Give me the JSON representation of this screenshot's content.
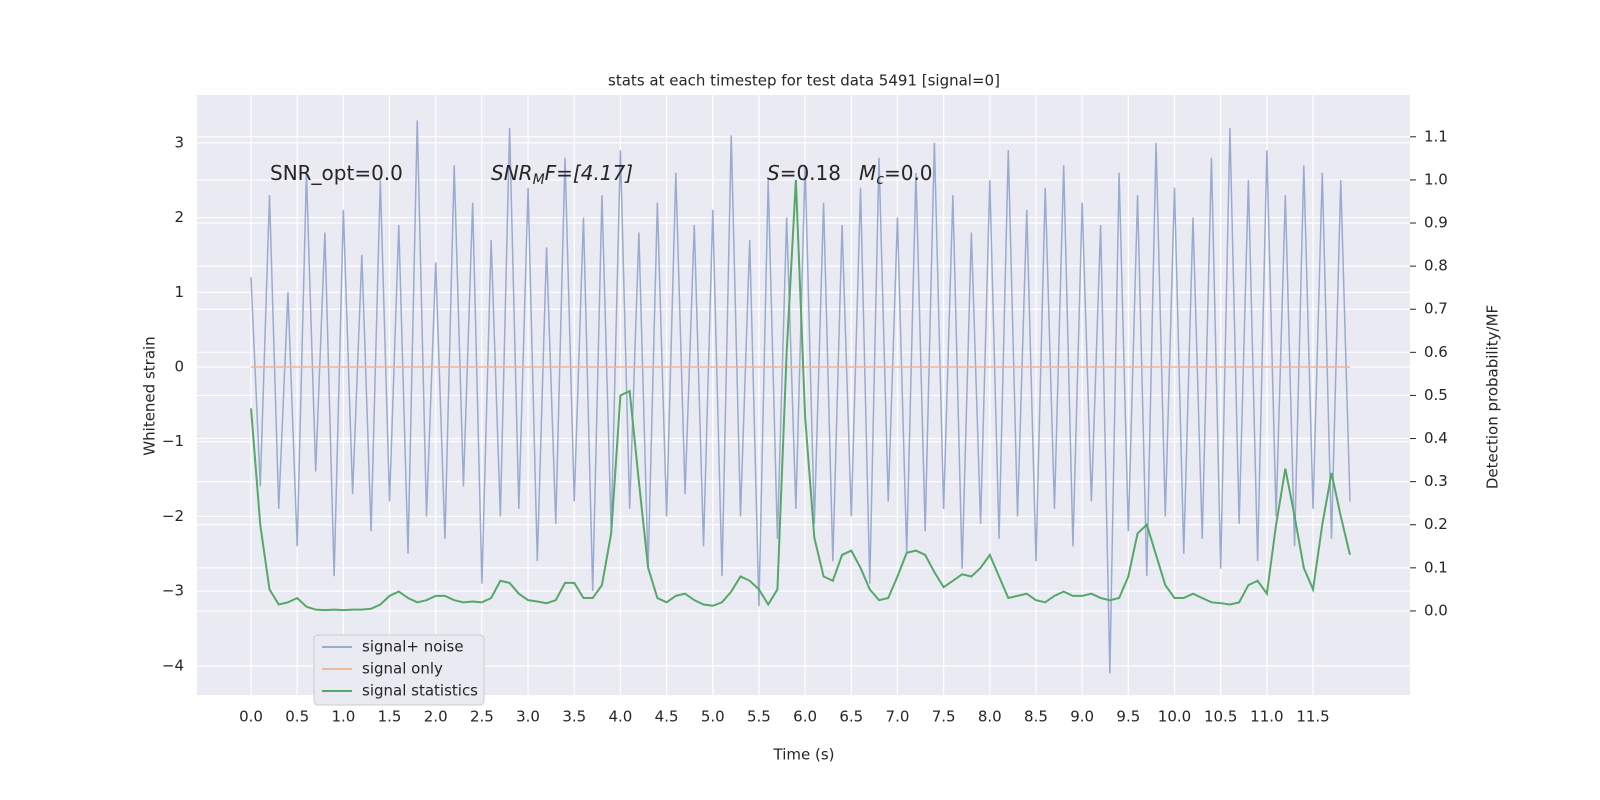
{
  "chart_data": {
    "type": "line",
    "title": "stats at each timestep for test data 5491 [signal=0]",
    "xlabel": "Time (s)",
    "ylabel": "Whitened strain",
    "y2label": "Detection probability/MF",
    "annotations": [
      [
        "SNR_opt=0.0"
      ],
      [
        "SNR",
        "M",
        "F=[4.17]"
      ],
      [
        "S",
        "=0.18",
        "M",
        "c",
        "=0.0"
      ]
    ],
    "x": [
      0.0,
      0.1,
      0.2,
      0.3,
      0.4,
      0.5,
      0.6,
      0.7,
      0.8,
      0.9,
      1.0,
      1.1,
      1.2,
      1.3,
      1.4,
      1.5,
      1.6,
      1.7,
      1.8,
      1.9,
      2.0,
      2.1,
      2.2,
      2.3,
      2.4,
      2.5,
      2.6,
      2.7,
      2.8,
      2.9,
      3.0,
      3.1,
      3.2,
      3.3,
      3.4,
      3.5,
      3.6,
      3.7,
      3.8,
      3.9,
      4.0,
      4.1,
      4.2,
      4.3,
      4.4,
      4.5,
      4.6,
      4.7,
      4.8,
      4.9,
      5.0,
      5.1,
      5.2,
      5.3,
      5.4,
      5.5,
      5.6,
      5.7,
      5.8,
      5.9,
      6.0,
      6.1,
      6.2,
      6.3,
      6.4,
      6.5,
      6.6,
      6.7,
      6.8,
      6.9,
      7.0,
      7.1,
      7.2,
      7.3,
      7.4,
      7.5,
      7.6,
      7.7,
      7.8,
      7.9,
      8.0,
      8.1,
      8.2,
      8.3,
      8.4,
      8.5,
      8.6,
      8.7,
      8.8,
      8.9,
      9.0,
      9.1,
      9.2,
      9.3,
      9.4,
      9.5,
      9.6,
      9.7,
      9.8,
      9.9,
      10.0,
      10.1,
      10.2,
      10.3,
      10.4,
      10.5,
      10.6,
      10.7,
      10.8,
      10.9,
      11.0,
      11.1,
      11.2,
      11.3,
      11.4,
      11.5,
      11.6,
      11.7,
      11.8,
      11.9
    ],
    "series": [
      {
        "name": "signal+ noise",
        "color": "#9aabd0",
        "values": [
          1.2,
          -1.6,
          2.3,
          -1.9,
          1.0,
          -2.4,
          2.6,
          -1.4,
          1.8,
          -2.8,
          2.1,
          -1.7,
          1.5,
          -2.2,
          2.5,
          -1.8,
          1.9,
          -2.5,
          3.3,
          -2.0,
          1.4,
          -2.3,
          2.7,
          -1.6,
          2.2,
          -2.9,
          1.7,
          -2.0,
          3.2,
          -1.9,
          2.4,
          -2.6,
          1.6,
          -2.1,
          2.8,
          -1.8,
          2.0,
          -3.0,
          2.3,
          -2.2,
          2.9,
          -1.9,
          1.8,
          -2.7,
          2.2,
          -2.0,
          2.6,
          -1.7,
          1.9,
          -2.4,
          2.1,
          -2.8,
          3.1,
          -2.0,
          1.7,
          -3.2,
          2.5,
          -2.3,
          2.0,
          -1.9,
          2.7,
          -2.1,
          2.2,
          -2.6,
          1.9,
          -2.0,
          2.4,
          -2.9,
          2.8,
          -1.8,
          2.0,
          -2.5,
          2.6,
          -2.2,
          3.0,
          -1.9,
          2.3,
          -2.7,
          1.8,
          -2.1,
          2.5,
          -2.3,
          2.9,
          -2.0,
          2.1,
          -2.6,
          2.4,
          -1.9,
          2.7,
          -2.4,
          2.2,
          -1.8,
          1.9,
          -4.1,
          2.6,
          -2.2,
          2.3,
          -2.8,
          3.0,
          -2.0,
          2.4,
          -2.5,
          2.0,
          -2.3,
          2.8,
          -2.7,
          3.2,
          -2.1,
          2.5,
          -2.6,
          2.9,
          -2.0,
          2.3,
          -2.4,
          2.7,
          -1.9,
          2.6,
          -2.3,
          2.5,
          -1.8
        ]
      },
      {
        "name": "signal only",
        "color": "#eeb79a",
        "values": [
          0,
          0,
          0,
          0,
          0,
          0,
          0,
          0,
          0,
          0,
          0,
          0,
          0,
          0,
          0,
          0,
          0,
          0,
          0,
          0,
          0,
          0,
          0,
          0,
          0,
          0,
          0,
          0,
          0,
          0,
          0,
          0,
          0,
          0,
          0,
          0,
          0,
          0,
          0,
          0,
          0,
          0,
          0,
          0,
          0,
          0,
          0,
          0,
          0,
          0,
          0,
          0,
          0,
          0,
          0,
          0,
          0,
          0,
          0,
          0,
          0,
          0,
          0,
          0,
          0,
          0,
          0,
          0,
          0,
          0,
          0,
          0,
          0,
          0,
          0,
          0,
          0,
          0,
          0,
          0,
          0,
          0,
          0,
          0,
          0,
          0,
          0,
          0,
          0,
          0,
          0,
          0,
          0,
          0,
          0,
          0,
          0,
          0,
          0,
          0,
          0,
          0,
          0,
          0,
          0,
          0,
          0,
          0,
          0,
          0,
          0,
          0,
          0,
          0,
          0,
          0,
          0,
          0,
          0,
          0
        ]
      },
      {
        "name": "signal statistics",
        "color": "#55a868",
        "axis": "y2",
        "values": [
          0.47,
          0.2,
          0.05,
          0.015,
          0.02,
          0.03,
          0.01,
          0.003,
          0.002,
          0.003,
          0.002,
          0.003,
          0.003,
          0.005,
          0.015,
          0.035,
          0.045,
          0.03,
          0.02,
          0.025,
          0.035,
          0.035,
          0.025,
          0.02,
          0.022,
          0.02,
          0.03,
          0.07,
          0.065,
          0.04,
          0.025,
          0.022,
          0.018,
          0.025,
          0.065,
          0.065,
          0.03,
          0.03,
          0.06,
          0.18,
          0.5,
          0.51,
          0.3,
          0.1,
          0.03,
          0.02,
          0.035,
          0.04,
          0.025,
          0.015,
          0.012,
          0.02,
          0.045,
          0.08,
          0.07,
          0.05,
          0.015,
          0.05,
          0.6,
          1.0,
          0.45,
          0.17,
          0.08,
          0.07,
          0.13,
          0.14,
          0.1,
          0.05,
          0.025,
          0.03,
          0.08,
          0.135,
          0.14,
          0.13,
          0.09,
          0.055,
          0.07,
          0.085,
          0.08,
          0.1,
          0.13,
          0.08,
          0.03,
          0.035,
          0.04,
          0.025,
          0.02,
          0.035,
          0.045,
          0.035,
          0.035,
          0.04,
          0.03,
          0.025,
          0.03,
          0.08,
          0.18,
          0.2,
          0.13,
          0.06,
          0.03,
          0.03,
          0.04,
          0.03,
          0.02,
          0.018,
          0.015,
          0.02,
          0.06,
          0.07,
          0.04,
          0.2,
          0.33,
          0.22,
          0.1,
          0.05,
          0.2,
          0.32,
          0.22,
          0.13
        ]
      }
    ],
    "xlim": [
      -0.585,
      12.55
    ],
    "xticks": [
      {
        "value": 0,
        "label": "0.0"
      },
      {
        "value": 0.5,
        "label": "0.5"
      },
      {
        "value": 1,
        "label": "1.0"
      },
      {
        "value": 1.5,
        "label": "1.5"
      },
      {
        "value": 2,
        "label": "2.0"
      },
      {
        "value": 2.5,
        "label": "2.5"
      },
      {
        "value": 3,
        "label": "3.0"
      },
      {
        "value": 3.5,
        "label": "3.5"
      },
      {
        "value": 4,
        "label": "4.0"
      },
      {
        "value": 4.5,
        "label": "4.5"
      },
      {
        "value": 5,
        "label": "5.0"
      },
      {
        "value": 5.5,
        "label": "5.5"
      },
      {
        "value": 6,
        "label": "6.0"
      },
      {
        "value": 6.5,
        "label": "6.5"
      },
      {
        "value": 7,
        "label": "7.0"
      },
      {
        "value": 7.5,
        "label": "7.5"
      },
      {
        "value": 8,
        "label": "8.0"
      },
      {
        "value": 8.5,
        "label": "8.5"
      },
      {
        "value": 9,
        "label": "9.0"
      },
      {
        "value": 9.5,
        "label": "9.5"
      },
      {
        "value": 10,
        "label": "10.0"
      },
      {
        "value": 10.5,
        "label": "10.5"
      },
      {
        "value": 11,
        "label": "11.0"
      },
      {
        "value": 11.5,
        "label": "11.5"
      }
    ],
    "ylim": [
      -4.39,
      3.64
    ],
    "yticks": [
      {
        "value": -4,
        "label": "−4"
      },
      {
        "value": -3,
        "label": "−3"
      },
      {
        "value": -2,
        "label": "−2"
      },
      {
        "value": -1,
        "label": "−1"
      },
      0,
      1,
      2,
      3
    ],
    "y2lim": [
      -0.195,
      1.197
    ],
    "y2ticks": [
      {
        "value": 0,
        "label": "0.0"
      },
      {
        "value": 0.1,
        "label": "0.1"
      },
      {
        "value": 0.2,
        "label": "0.2"
      },
      {
        "value": 0.3,
        "label": "0.3"
      },
      {
        "value": 0.4,
        "label": "0.4"
      },
      {
        "value": 0.5,
        "label": "0.5"
      },
      {
        "value": 0.6,
        "label": "0.6"
      },
      {
        "value": 0.7,
        "label": "0.7"
      },
      {
        "value": 0.8,
        "label": "0.8"
      },
      {
        "value": 0.9,
        "label": "0.9"
      },
      {
        "value": 1,
        "label": "1.0"
      },
      {
        "value": 1.1,
        "label": "1.1"
      }
    ],
    "grid": true,
    "legend": "lower left"
  }
}
